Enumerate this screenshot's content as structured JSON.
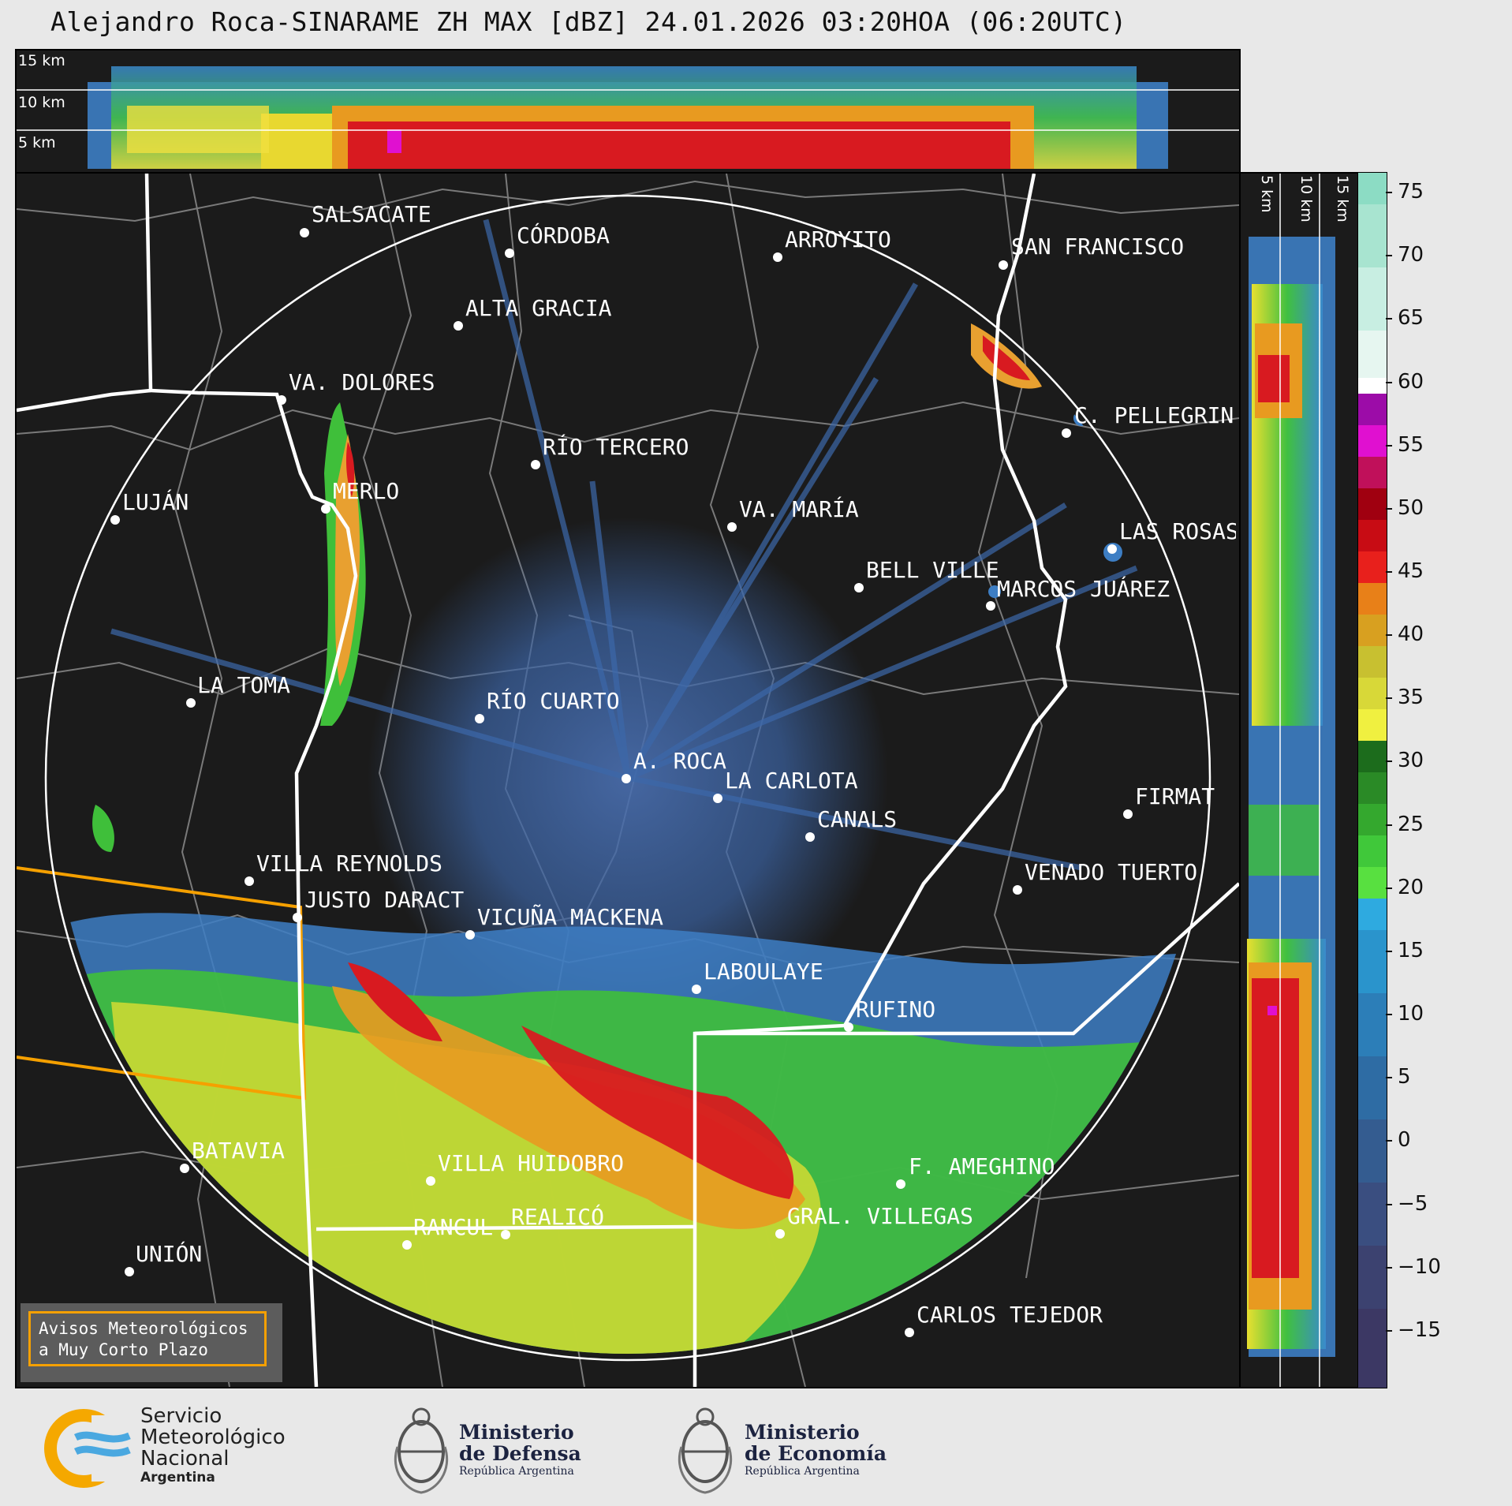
{
  "title": "Alejandro Roca-SINARAME ZH MAX [dBZ] 24.01.2026 03:20HOA (06:20UTC)",
  "top_panel": {
    "height_labels": [
      "15 km",
      "10 km",
      "5 km"
    ]
  },
  "right_panel": {
    "height_labels": [
      "5 km",
      "10 km",
      "15 km"
    ]
  },
  "colorbar": {
    "ticks": [
      "75",
      "70",
      "65",
      "60",
      "55",
      "50",
      "45",
      "40",
      "35",
      "30",
      "25",
      "20",
      "15",
      "10",
      "5",
      "0",
      "−5",
      "−10",
      "−15"
    ]
  },
  "cities": [
    {
      "name": "SALSACATE"
    },
    {
      "name": "CÓRDOBA"
    },
    {
      "name": "ARROYITO"
    },
    {
      "name": "SAN FRANCISCO"
    },
    {
      "name": "ALTA GRACIA"
    },
    {
      "name": "VA. DOLORES"
    },
    {
      "name": "C. PELLEGRINI"
    },
    {
      "name": "RÍO TERCERO"
    },
    {
      "name": "LUJÁN"
    },
    {
      "name": "MERLO"
    },
    {
      "name": "VA. MARÍA"
    },
    {
      "name": "LAS ROSAS"
    },
    {
      "name": "BELL VILLE"
    },
    {
      "name": "MARCOS JUÁREZ"
    },
    {
      "name": "LA TOMA"
    },
    {
      "name": "RÍO CUARTO"
    },
    {
      "name": "A. ROCA"
    },
    {
      "name": "LA CARLOTA"
    },
    {
      "name": "FIRMAT"
    },
    {
      "name": "CANALS"
    },
    {
      "name": "VILLA REYNOLDS"
    },
    {
      "name": "VENADO TUERTO"
    },
    {
      "name": "JUSTO DARACT"
    },
    {
      "name": "VICUÑA MACKENA"
    },
    {
      "name": "LABOULAYE"
    },
    {
      "name": "RUFINO"
    },
    {
      "name": "BATAVIA"
    },
    {
      "name": "VILLA HUIDOBRO"
    },
    {
      "name": "F. AMEGHINO"
    },
    {
      "name": "RANCUL"
    },
    {
      "name": "REALICÓ"
    },
    {
      "name": "GRAL. VILLEGAS"
    },
    {
      "name": "UNIÓN"
    },
    {
      "name": "CARLOS TEJEDOR"
    }
  ],
  "warning_box": {
    "line1": "Avisos Meteorológicos",
    "line2": "a Muy Corto Plazo",
    "border_color": "#f5a000"
  },
  "footer": {
    "smn": {
      "line1": "Servicio",
      "line2": "Meteorológico",
      "line3": "Nacional",
      "line4": "Argentina"
    },
    "defensa": {
      "line1": "Ministerio",
      "line2": "de Defensa",
      "line3": "República Argentina"
    },
    "economia": {
      "line1": "Ministerio",
      "line2": "de Economía",
      "line3": "República Argentina"
    }
  },
  "colors": {
    "background": "#1b1b1b",
    "ring": "#ffffff",
    "province_border": "#ffffff",
    "district_border": "#7a7a7a",
    "warning_polygon": "#f5a000"
  }
}
